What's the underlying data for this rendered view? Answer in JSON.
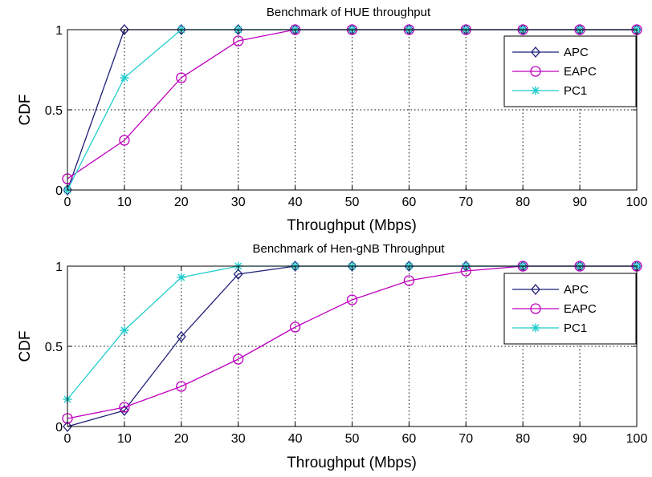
{
  "chart_data": [
    {
      "type": "line",
      "title": "Benchmark of HUE throughput",
      "xlabel": "Throughput (Mbps)",
      "ylabel": "CDF",
      "xlim": [
        0,
        100
      ],
      "ylim": [
        0,
        1
      ],
      "xticks": [
        "0",
        "10",
        "20",
        "30",
        "40",
        "50",
        "60",
        "70",
        "80",
        "90",
        "100"
      ],
      "yticks": [
        "0",
        "0.5",
        "1"
      ],
      "grid": true,
      "legend_position": "top-right",
      "x": [
        0,
        10,
        20,
        30,
        40,
        50,
        60,
        70,
        80,
        90,
        100
      ],
      "series": [
        {
          "name": "APC",
          "color": "#1f1f7a",
          "marker": "diamond",
          "values": [
            0,
            1,
            1,
            1,
            1,
            1,
            1,
            1,
            1,
            1,
            1
          ]
        },
        {
          "name": "EAPC",
          "color": "#bf00bf",
          "marker": "circle",
          "values": [
            0.07,
            0.31,
            0.7,
            0.93,
            1,
            1,
            1,
            1,
            1,
            1,
            1
          ]
        },
        {
          "name": "PC1",
          "color": "#22cccc",
          "marker": "star",
          "values": [
            0,
            0.7,
            1,
            1,
            1,
            1,
            1,
            1,
            1,
            1,
            1
          ]
        }
      ]
    },
    {
      "type": "line",
      "title": "Benchmark of Hen-gNB Throughput",
      "xlabel": "Throughput (Mbps)",
      "ylabel": "CDF",
      "xlim": [
        0,
        100
      ],
      "ylim": [
        0,
        1
      ],
      "xticks": [
        "0",
        "10",
        "20",
        "30",
        "40",
        "50",
        "60",
        "70",
        "80",
        "90",
        "100"
      ],
      "yticks": [
        "0",
        "0.5",
        "1"
      ],
      "grid": true,
      "legend_position": "top-right",
      "x": [
        0,
        10,
        20,
        30,
        40,
        50,
        60,
        70,
        80,
        90,
        100
      ],
      "series": [
        {
          "name": "APC",
          "color": "#1f1f7a",
          "marker": "diamond",
          "values": [
            0,
            0.1,
            0.56,
            0.95,
            1,
            1,
            1,
            1,
            1,
            1,
            1
          ]
        },
        {
          "name": "EAPC",
          "color": "#bf00bf",
          "marker": "circle",
          "values": [
            0.05,
            0.12,
            0.25,
            0.42,
            0.62,
            0.79,
            0.91,
            0.97,
            1,
            1,
            1
          ]
        },
        {
          "name": "PC1",
          "color": "#22cccc",
          "marker": "star",
          "values": [
            0.17,
            0.6,
            0.93,
            1,
            1,
            1,
            1,
            1,
            1,
            1,
            1
          ]
        }
      ]
    }
  ]
}
